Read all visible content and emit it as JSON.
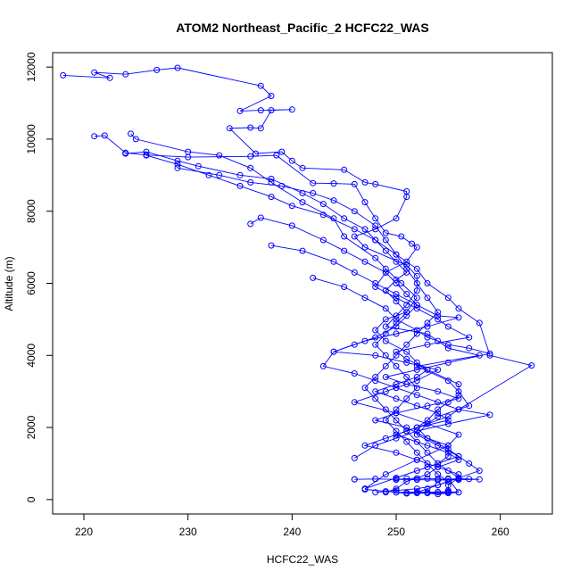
{
  "chart_data": {
    "type": "line",
    "title": "ATOM2 Northeast_Pacific_2 HCFC22_WAS",
    "xlabel": "HCFC22_WAS",
    "ylabel": "Altitude (m)",
    "xlim": [
      217,
      265
    ],
    "ylim": [
      -400,
      12400
    ],
    "xticks": [
      220,
      230,
      240,
      250,
      260
    ],
    "yticks": [
      0,
      2000,
      4000,
      6000,
      8000,
      10000,
      12000
    ],
    "grid": false,
    "legend": "none",
    "color": "#0000ff",
    "series": [
      {
        "x": [
          218,
          222.5,
          221,
          224,
          227,
          229,
          237,
          238,
          235,
          237,
          240,
          238,
          237,
          236,
          234,
          236.5,
          239,
          240,
          241,
          245,
          247,
          248,
          251,
          251,
          250,
          248,
          246,
          247,
          251,
          252,
          252,
          251,
          250,
          249,
          253,
          254,
          255,
          258,
          252,
          255,
          256,
          257,
          254,
          253,
          252,
          254,
          256,
          257,
          258,
          256,
          255,
          255,
          255
        ],
        "y": [
          11770,
          11700,
          11850,
          11800,
          11920,
          11980,
          11480,
          11200,
          10780,
          10800,
          10820,
          10800,
          10300,
          10320,
          10300,
          9600,
          9650,
          9400,
          9200,
          9150,
          8800,
          8750,
          8550,
          8400,
          7800,
          7500,
          7300,
          7000,
          6500,
          6200,
          5800,
          5400,
          5100,
          4800,
          4600,
          4400,
          4200,
          4000,
          3700,
          3300,
          3000,
          2600,
          2300,
          2100,
          1800,
          1500,
          1200,
          1000,
          800,
          600,
          400,
          250,
          180
        ]
      },
      {
        "x": [
          221,
          222,
          224,
          226,
          230,
          236,
          238.5,
          242,
          244,
          246,
          247,
          248,
          249,
          250.5,
          251.5,
          252,
          251,
          249,
          248,
          250,
          252,
          254,
          255,
          257,
          253,
          250,
          251,
          253,
          256,
          256,
          255,
          254,
          253,
          252,
          253,
          255,
          255,
          254,
          252,
          250,
          250
        ],
        "y": [
          10080,
          10100,
          9620,
          9560,
          9500,
          9520,
          9550,
          8780,
          8770,
          8750,
          8250,
          7800,
          7400,
          7300,
          7100,
          7000,
          6600,
          6300,
          5900,
          5600,
          5300,
          5000,
          4800,
          4500,
          4300,
          4100,
          3900,
          3600,
          3200,
          2900,
          2700,
          2500,
          2200,
          2000,
          1700,
          1500,
          1200,
          1000,
          800,
          600,
          550
        ]
      },
      {
        "x": [
          224.5,
          225,
          230,
          233,
          236,
          238,
          241,
          244,
          245,
          248,
          249,
          250.5,
          252,
          251,
          249,
          248,
          249,
          251,
          252,
          253,
          252,
          250,
          248,
          250,
          252,
          254,
          255,
          252,
          250,
          253,
          255,
          256,
          254,
          253,
          251,
          250,
          249
        ],
        "y": [
          10150,
          10000,
          9650,
          9550,
          9200,
          8800,
          8250,
          7800,
          7300,
          6700,
          6400,
          6000,
          5600,
          5200,
          5000,
          4700,
          4400,
          4100,
          3800,
          3600,
          3400,
          3200,
          3000,
          2800,
          2600,
          2400,
          2200,
          2000,
          1800,
          1500,
          1300,
          1100,
          900,
          700,
          500,
          300,
          200
        ]
      },
      {
        "x": [
          224,
          226,
          229,
          231,
          235,
          238,
          241,
          243,
          245,
          247,
          248,
          249,
          250,
          251,
          250,
          249,
          250,
          251,
          250,
          249,
          248,
          249,
          250,
          251,
          252,
          251,
          250,
          249,
          250,
          251,
          252,
          253,
          254,
          255,
          254,
          253,
          252,
          254,
          256,
          255
        ],
        "y": [
          9600,
          9650,
          9400,
          9250,
          9000,
          8900,
          8500,
          8200,
          7800,
          7500,
          7200,
          6900,
          6600,
          6300,
          6100,
          5800,
          5500,
          5200,
          4900,
          4600,
          4300,
          4000,
          3700,
          3400,
          3100,
          2800,
          2500,
          2200,
          1900,
          1600,
          1300,
          1000,
          700,
          500,
          400,
          300,
          200,
          150,
          200,
          580
        ]
      },
      {
        "x": [
          226,
          229,
          232,
          235,
          238,
          240,
          243,
          246,
          248,
          250,
          252,
          253,
          255,
          256,
          258,
          259,
          263,
          256,
          259,
          255,
          252,
          250,
          248,
          246
        ],
        "y": [
          9550,
          9300,
          9000,
          8700,
          8400,
          8150,
          7900,
          7500,
          7200,
          6800,
          6400,
          6000,
          5600,
          5300,
          4900,
          4000,
          3720,
          2500,
          2350,
          2100,
          1900,
          1700,
          1500,
          1150
        ]
      },
      {
        "x": [
          229,
          233,
          236,
          239,
          242,
          244,
          246,
          248,
          249,
          250,
          251,
          252,
          253,
          254,
          253,
          252,
          251,
          250,
          249,
          248,
          247,
          248,
          249,
          250,
          251,
          252,
          253,
          254,
          255,
          256,
          255,
          254,
          252,
          250,
          248
        ],
        "y": [
          9200,
          9000,
          8800,
          8700,
          8500,
          8300,
          8000,
          7600,
          7200,
          6800,
          6400,
          6000,
          5600,
          5200,
          4900,
          4600,
          4300,
          4000,
          3700,
          3400,
          3100,
          2800,
          2500,
          2200,
          1900,
          1600,
          1300,
          1000,
          800,
          600,
          500,
          400,
          300,
          250,
          200
        ]
      },
      {
        "x": [
          236,
          237,
          240,
          243,
          245,
          247,
          249,
          250,
          251,
          252,
          251,
          250,
          248,
          246,
          244,
          243,
          246,
          248,
          250,
          252,
          254,
          256,
          255,
          253,
          251,
          249,
          247,
          250,
          252,
          254,
          256
        ],
        "y": [
          7650,
          7820,
          7600,
          7200,
          6900,
          6600,
          6300,
          6000,
          5700,
          5400,
          5100,
          4800,
          4500,
          4300,
          4100,
          3700,
          3500,
          3300,
          3100,
          2900,
          2700,
          2500,
          2300,
          2100,
          1900,
          1700,
          1500,
          1300,
          1100,
          900,
          700
        ]
      },
      {
        "x": [
          238,
          241,
          244,
          246,
          248,
          250,
          252,
          254,
          256,
          253,
          250,
          247,
          244,
          248,
          251,
          254,
          252,
          249,
          246,
          250,
          253,
          256,
          255,
          252,
          249,
          247
        ],
        "y": [
          7050,
          6900,
          6600,
          6300,
          6000,
          5700,
          5400,
          5100,
          5050,
          4800,
          4600,
          4400,
          4100,
          4000,
          3800,
          3600,
          3300,
          3000,
          2700,
          2400,
          2100,
          1800,
          1500,
          1100,
          700,
          300
        ]
      },
      {
        "x": [
          242,
          245,
          247,
          249,
          250,
          252,
          253,
          255,
          257,
          259,
          255,
          252,
          249,
          251,
          254,
          256,
          253,
          250,
          248,
          251,
          253,
          255,
          256,
          253,
          250,
          247
        ],
        "y": [
          6150,
          5900,
          5600,
          5300,
          5000,
          4700,
          4500,
          4300,
          4200,
          4050,
          3800,
          3600,
          3400,
          3200,
          3000,
          2800,
          2600,
          2400,
          2200,
          2000,
          1700,
          1400,
          1200,
          900,
          600,
          300
        ]
      },
      {
        "x": [
          246,
          248,
          250,
          251,
          252,
          253,
          254,
          255,
          256,
          257,
          258,
          256,
          254,
          252,
          250,
          248,
          246
        ],
        "y": [
          560,
          570,
          560,
          580,
          590,
          580,
          570,
          560,
          580,
          570,
          560,
          550,
          540,
          550,
          560,
          570,
          560
        ]
      },
      {
        "x": [
          247,
          249,
          250,
          251,
          252,
          253,
          254,
          255,
          256,
          255,
          253,
          251,
          250,
          252,
          254,
          255
        ],
        "y": [
          280,
          230,
          200,
          190,
          180,
          200,
          210,
          220,
          200,
          190,
          180,
          170,
          200,
          210,
          200,
          190
        ]
      }
    ]
  }
}
